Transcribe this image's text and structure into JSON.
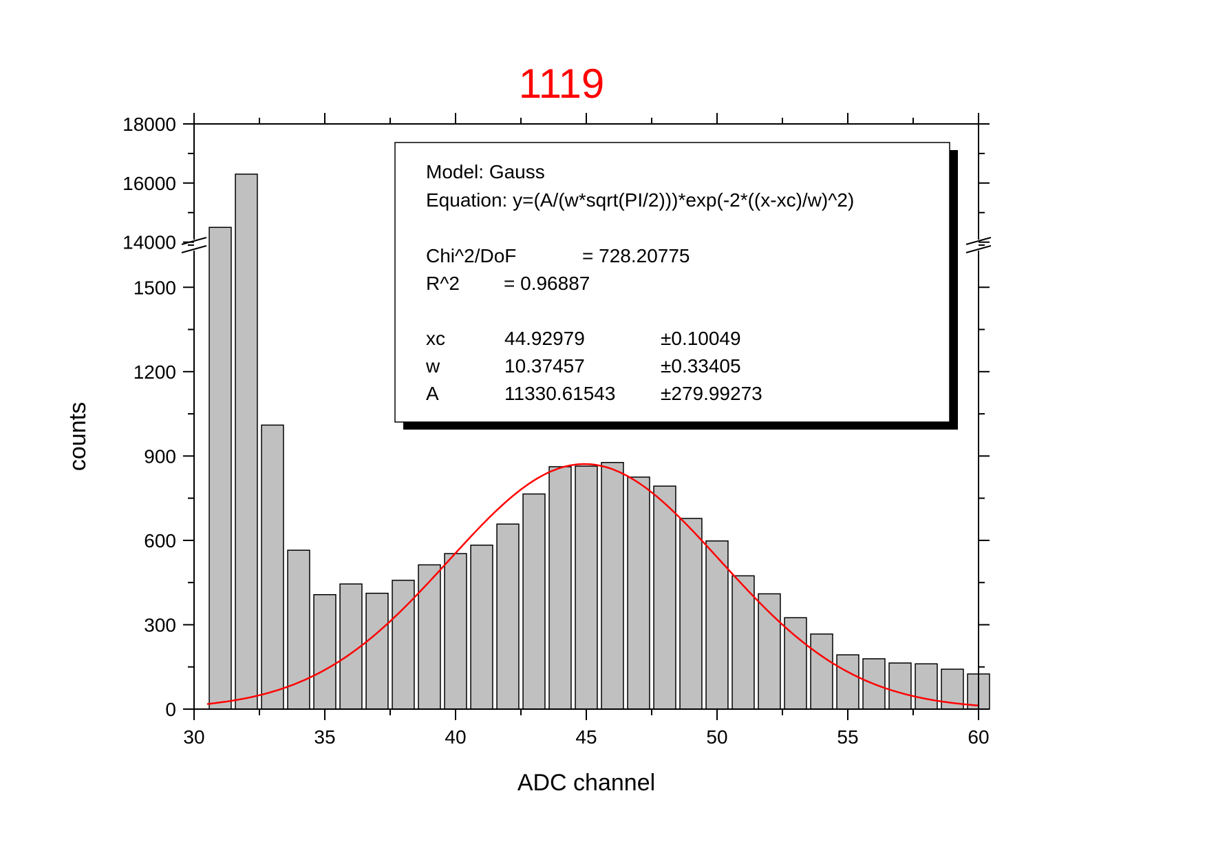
{
  "chart_data": {
    "type": "bar",
    "title": "1119",
    "title_color": "#ff0000",
    "xlabel": "ADC channel",
    "ylabel": "counts",
    "xlim": [
      30,
      60
    ],
    "x_ticks": [
      "30",
      "35",
      "40",
      "45",
      "50",
      "55",
      "60"
    ],
    "y_ticks_lower": [
      "0",
      "300",
      "600",
      "900",
      "1200",
      "1500"
    ],
    "y_ticks_upper": [
      "14000",
      "16000",
      "18000"
    ],
    "y_axis_break": {
      "lower_range": [
        0,
        1650
      ],
      "upper_range": [
        13900,
        18000
      ]
    },
    "bar_color": "#c0c0c0",
    "fit_color": "#ff0000",
    "categories": [
      31,
      32,
      33,
      34,
      35,
      36,
      37,
      38,
      39,
      40,
      41,
      42,
      43,
      44,
      45,
      46,
      47,
      48,
      49,
      50,
      51,
      52,
      53,
      54,
      55,
      56,
      57,
      58,
      59,
      60
    ],
    "values": [
      14500,
      16300,
      1010,
      565,
      407,
      445,
      412,
      458,
      513,
      553,
      583,
      658,
      765,
      862,
      864,
      877,
      825,
      793,
      678,
      598,
      474,
      410,
      325,
      267,
      193,
      179,
      164,
      161,
      142,
      125
    ],
    "fit": {
      "model": "Model: Gauss",
      "equation": "Equation: y=(A/(w*sqrt(PI/2)))*exp(-2*((x-xc)/w)^2)",
      "chi_label": "Chi^2/DoF",
      "chi_value": "= 728.20775",
      "r2_label": "R^2",
      "r2_value": "=  0.96887",
      "params": [
        {
          "name": "xc",
          "value": "44.92979",
          "error": "±0.10049"
        },
        {
          "name": "w",
          "value": "10.37457",
          "error": "±0.33405"
        },
        {
          "name": "A",
          "value": "11330.61543",
          "error": "±279.99273"
        }
      ],
      "xc": 44.92979,
      "w": 10.37457,
      "A": 11330.61543
    }
  }
}
